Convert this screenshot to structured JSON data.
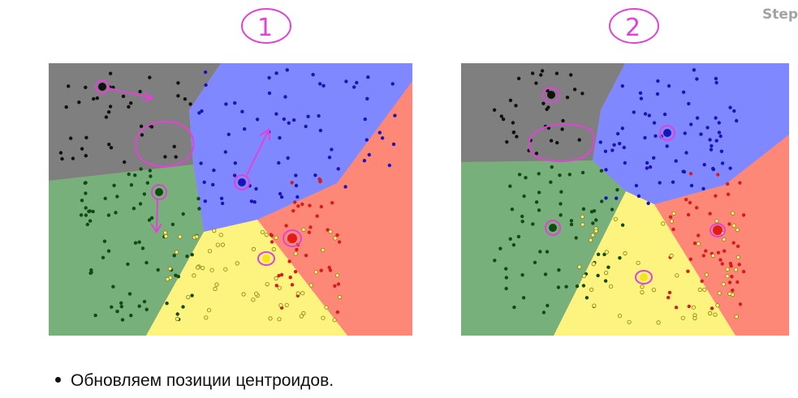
{
  "header": {
    "step_label": "Step"
  },
  "steps": [
    {
      "number": "1"
    },
    {
      "number": "2"
    }
  ],
  "bullet_text": "Обновляем позиции центроидов.",
  "colors": {
    "cluster_gray": "#7f7f7f",
    "cluster_blue": "#8088ff",
    "cluster_green": "#77b07a",
    "cluster_yellow": "#fdf47f",
    "cluster_red": "#fe8878",
    "annotation": "#e044d6"
  },
  "icons": [
    "annotation-circle-icon",
    "annotation-arrow-icon",
    "centroid-icon"
  ]
}
